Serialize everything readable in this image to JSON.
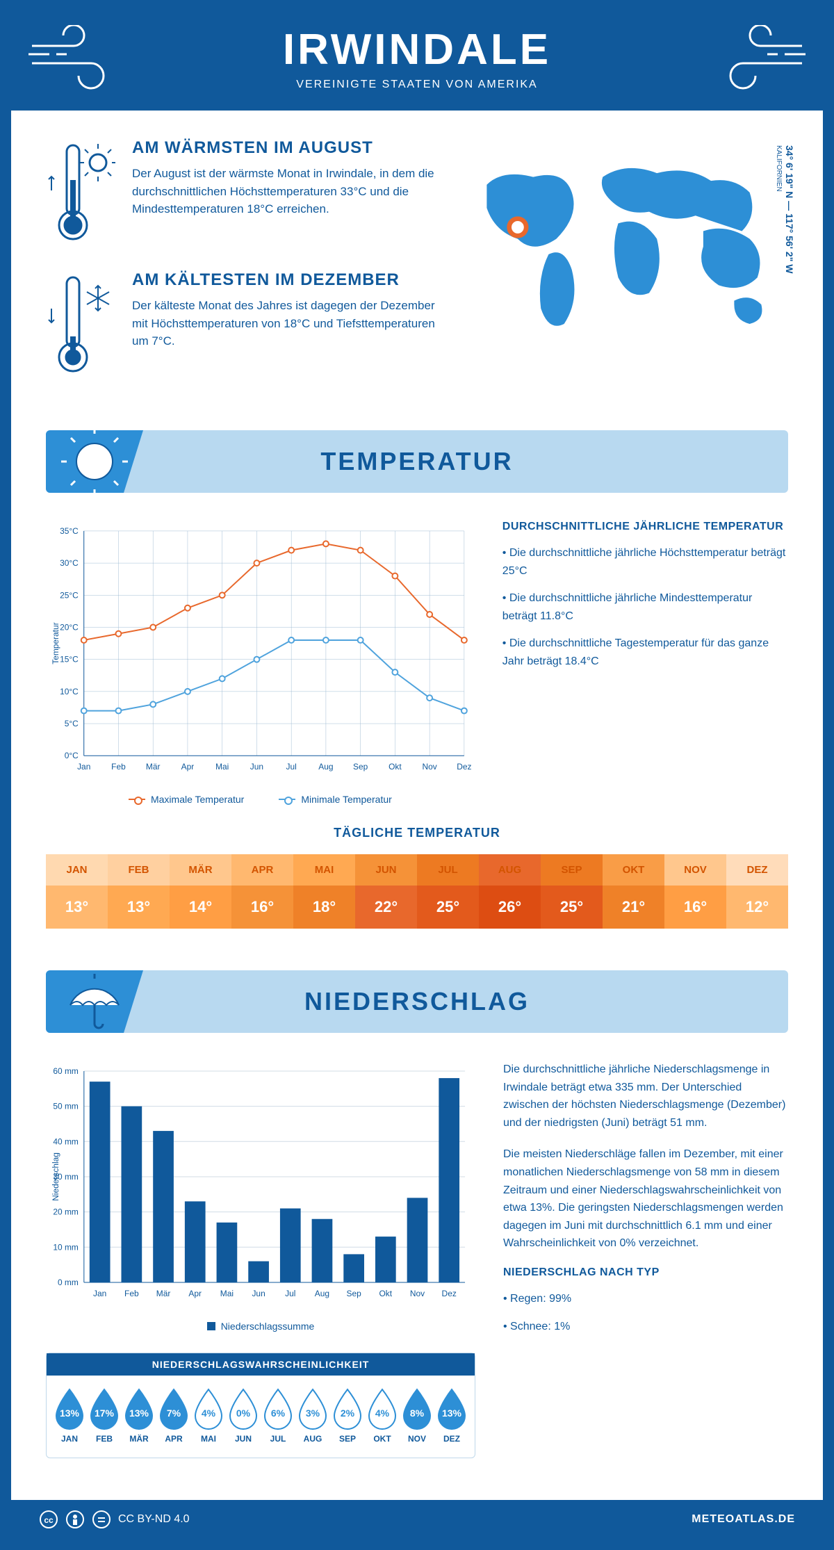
{
  "colors": {
    "primary": "#10599b",
    "accent_blue": "#2d8fd6",
    "light_blue": "#b8d9f0",
    "orange_line": "#e8682c",
    "blue_line": "#4fa3dd",
    "bar_fill": "#10599b"
  },
  "header": {
    "title": "IRWINDALE",
    "subtitle": "VEREINIGTE STAATEN VON AMERIKA"
  },
  "facts": {
    "warm": {
      "title": "AM WÄRMSTEN IM AUGUST",
      "text": "Der August ist der wärmste Monat in Irwindale, in dem die durchschnittlichen Höchsttemperaturen 33°C und die Mindesttemperaturen 18°C erreichen."
    },
    "cold": {
      "title": "AM KÄLTESTEN IM DEZEMBER",
      "text": "Der kälteste Monat des Jahres ist dagegen der Dezember mit Höchsttemperaturen von 18°C und Tiefsttemperaturen um 7°C."
    },
    "coords": "34° 6' 19\" N — 117° 56' 2\" W",
    "state": "KALIFORNIEN"
  },
  "temp_section": {
    "title": "TEMPERATUR",
    "chart": {
      "type": "line",
      "months": [
        "Jan",
        "Feb",
        "Mär",
        "Apr",
        "Mai",
        "Jun",
        "Jul",
        "Aug",
        "Sep",
        "Okt",
        "Nov",
        "Dez"
      ],
      "max_values": [
        18,
        19,
        20,
        23,
        25,
        30,
        32,
        33,
        32,
        28,
        22,
        18
      ],
      "min_values": [
        7,
        7,
        8,
        10,
        12,
        15,
        18,
        18,
        18,
        13,
        9,
        7
      ],
      "ytick_step": 5,
      "ylim": [
        0,
        35
      ],
      "ylabel": "Temperatur",
      "max_color": "#e8682c",
      "min_color": "#4fa3dd",
      "line_width": 2,
      "grid_color": "#a0bcd4"
    },
    "legend_max": "Maximale Temperatur",
    "legend_min": "Minimale Temperatur",
    "side_title": "DURCHSCHNITTLICHE JÄHRLICHE TEMPERATUR",
    "bullets": [
      "• Die durchschnittliche jährliche Höchsttemperatur beträgt 25°C",
      "• Die durchschnittliche jährliche Mindesttemperatur beträgt 11.8°C",
      "• Die durchschnittliche Tagestemperatur für das ganze Jahr beträgt 18.4°C"
    ],
    "daily_title": "TÄGLICHE TEMPERATUR",
    "daily": {
      "months": [
        "JAN",
        "FEB",
        "MÄR",
        "APR",
        "MAI",
        "JUN",
        "JUL",
        "AUG",
        "SEP",
        "OKT",
        "NOV",
        "DEZ"
      ],
      "values": [
        "13°",
        "13°",
        "14°",
        "16°",
        "18°",
        "22°",
        "25°",
        "26°",
        "25°",
        "21°",
        "16°",
        "12°"
      ],
      "header_colors": [
        "#ffd9b0",
        "#ffd0a0",
        "#ffc78d",
        "#ffb86f",
        "#ffa952",
        "#f59238",
        "#ed7a22",
        "#e8682c",
        "#ed7a22",
        "#f99d47",
        "#ffc78d",
        "#ffdcba"
      ],
      "value_colors": [
        "#ffb86f",
        "#ffa952",
        "#ff9e44",
        "#f59238",
        "#ef8128",
        "#e8682c",
        "#e35a1c",
        "#dd4d12",
        "#e35a1c",
        "#ef8128",
        "#ff9e44",
        "#ffb86f"
      ]
    }
  },
  "precip_section": {
    "title": "NIEDERSCHLAG",
    "chart": {
      "type": "bar",
      "months": [
        "Jan",
        "Feb",
        "Mär",
        "Apr",
        "Mai",
        "Jun",
        "Jul",
        "Aug",
        "Sep",
        "Okt",
        "Nov",
        "Dez"
      ],
      "values": [
        57,
        50,
        43,
        23,
        17,
        6,
        21,
        18,
        8,
        13,
        24,
        58
      ],
      "ylim": [
        0,
        60
      ],
      "ytick_step": 10,
      "ylabel": "Niederschlag",
      "bar_color": "#10599b",
      "grid_color": "#d0dce6"
    },
    "legend": "Niederschlagssumme",
    "para1": "Die durchschnittliche jährliche Niederschlagsmenge in Irwindale beträgt etwa 335 mm. Der Unterschied zwischen der höchsten Niederschlagsmenge (Dezember) und der niedrigsten (Juni) beträgt 51 mm.",
    "para2": "Die meisten Niederschläge fallen im Dezember, mit einer monatlichen Niederschlagsmenge von 58 mm in diesem Zeitraum und einer Niederschlagswahrscheinlichkeit von etwa 13%. Die geringsten Niederschlagsmengen werden dagegen im Juni mit durchschnittlich 6.1 mm und einer Wahrscheinlichkeit von 0% verzeichnet.",
    "type_title": "NIEDERSCHLAG NACH TYP",
    "type_bullets": [
      "• Regen: 99%",
      "• Schnee: 1%"
    ],
    "prob_title": "NIEDERSCHLAGSWAHRSCHEINLICHKEIT",
    "prob": {
      "months": [
        "JAN",
        "FEB",
        "MÄR",
        "APR",
        "MAI",
        "JUN",
        "JUL",
        "AUG",
        "SEP",
        "OKT",
        "NOV",
        "DEZ"
      ],
      "values": [
        "13%",
        "17%",
        "13%",
        "7%",
        "4%",
        "0%",
        "6%",
        "3%",
        "2%",
        "4%",
        "8%",
        "13%"
      ],
      "filled": [
        true,
        true,
        true,
        true,
        false,
        false,
        false,
        false,
        false,
        false,
        true,
        true
      ]
    }
  },
  "footer": {
    "license": "CC BY-ND 4.0",
    "brand": "METEOATLAS.DE"
  }
}
